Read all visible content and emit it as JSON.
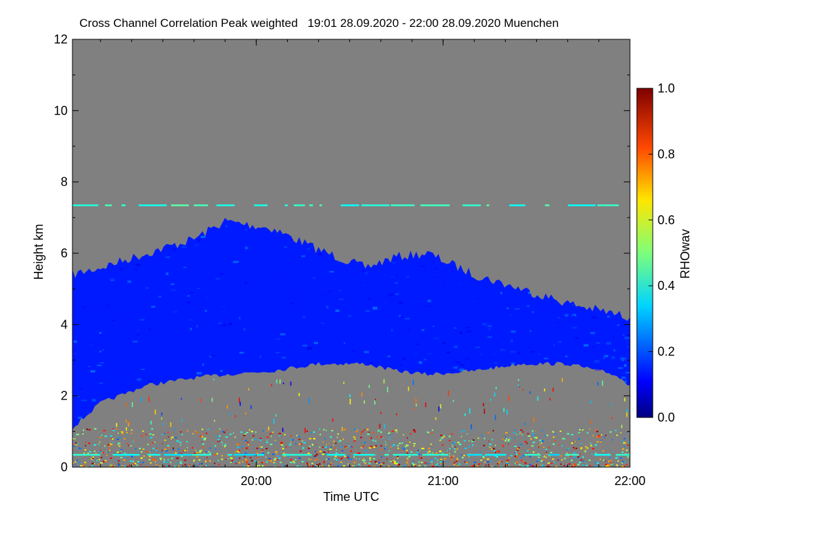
{
  "chart_data": {
    "type": "heatmap",
    "title": "Cross Channel Correlation Peak weighted   19:01 28.09.2020 - 22:00 28.09.2020 Muenchen",
    "xlabel": "Time UTC",
    "ylabel": "Height km",
    "x_range": [
      "19:01",
      "22:00"
    ],
    "x_ticks": [
      "20:00",
      "21:00",
      "22:00"
    ],
    "ylim": [
      0,
      12
    ],
    "y_ticks": [
      "0",
      "2",
      "4",
      "6",
      "8",
      "10",
      "12"
    ],
    "colorbar": {
      "label": "RHOwav",
      "range": [
        0.0,
        1.0
      ],
      "ticks": [
        "0.0",
        "0.2",
        "0.4",
        "0.6",
        "0.8",
        "1.0"
      ],
      "colormap": "jet"
    },
    "background_color": "#808080",
    "cloud_layer": {
      "color_value": 0.15,
      "time": [
        "19:01",
        "19:10",
        "19:25",
        "19:40",
        "19:50",
        "20:05",
        "20:20",
        "20:35",
        "20:45",
        "20:55",
        "21:10",
        "21:25",
        "21:40",
        "21:55",
        "22:00"
      ],
      "top_km": [
        5.4,
        5.6,
        6.0,
        6.4,
        6.9,
        6.7,
        6.1,
        5.6,
        5.9,
        6.0,
        5.4,
        5.0,
        4.6,
        4.3,
        4.2
      ],
      "base_km": [
        1.1,
        1.8,
        2.3,
        2.5,
        2.6,
        2.7,
        2.9,
        2.9,
        2.7,
        2.6,
        2.7,
        2.9,
        2.9,
        2.6,
        2.3
      ]
    },
    "near_ground_noise": {
      "height_range_km": [
        0.0,
        1.1
      ],
      "color_value_range": [
        0.2,
        1.0
      ]
    },
    "horizontal_artifacts": [
      {
        "height_km": 7.35,
        "color_value": 0.42
      },
      {
        "height_km": 0.35,
        "color_value": 0.38
      }
    ]
  }
}
